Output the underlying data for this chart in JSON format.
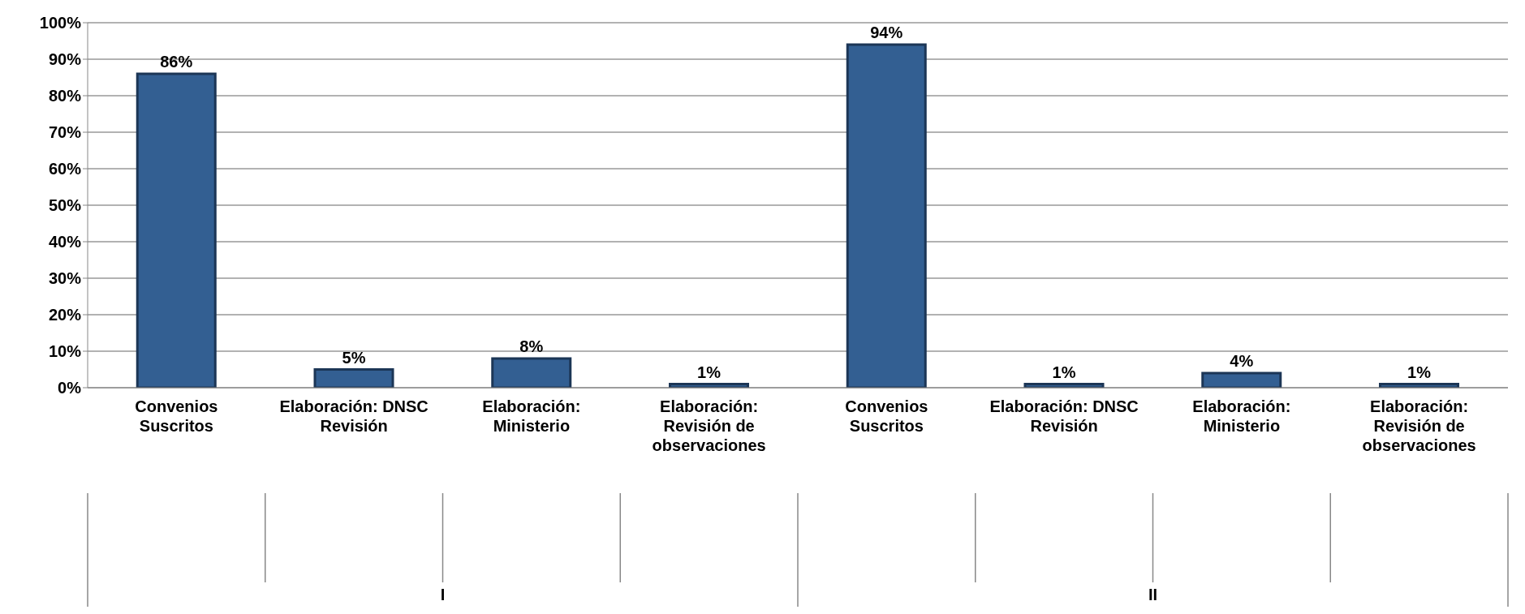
{
  "chart_data": {
    "type": "bar",
    "categories": [
      "Convenios Suscritos",
      "Elaboración: DNSC Revisión",
      "Elaboración: Ministerio",
      "Elaboración: Revisión de observaciones",
      "Convenios Suscritos",
      "Elaboración: DNSC Revisión",
      "Elaboración: Ministerio",
      "Elaboración: Revisión de observaciones"
    ],
    "values": [
      86,
      5,
      8,
      1,
      94,
      1,
      4,
      1
    ],
    "color": "#335f92",
    "ylim": [
      0,
      100
    ],
    "yticks": [
      {
        "value": 0,
        "label": "0%"
      },
      {
        "value": 10,
        "label": "10%"
      },
      {
        "value": 20,
        "label": "20%"
      },
      {
        "value": 30,
        "label": "30%"
      },
      {
        "value": 40,
        "label": "40%"
      },
      {
        "value": 50,
        "label": "50%"
      },
      {
        "value": 60,
        "label": "60%"
      },
      {
        "value": 70,
        "label": "70%"
      },
      {
        "value": 80,
        "label": "80%"
      },
      {
        "value": 90,
        "label": "90%"
      },
      {
        "value": 100,
        "label": "100%"
      }
    ],
    "grid": "y",
    "data_labels": true,
    "value_labels": [
      "86%",
      "5%",
      "8%",
      "1%",
      "94%",
      "1%",
      "4%",
      "1%"
    ],
    "annotations": [
      "I",
      "II"
    ]
  }
}
